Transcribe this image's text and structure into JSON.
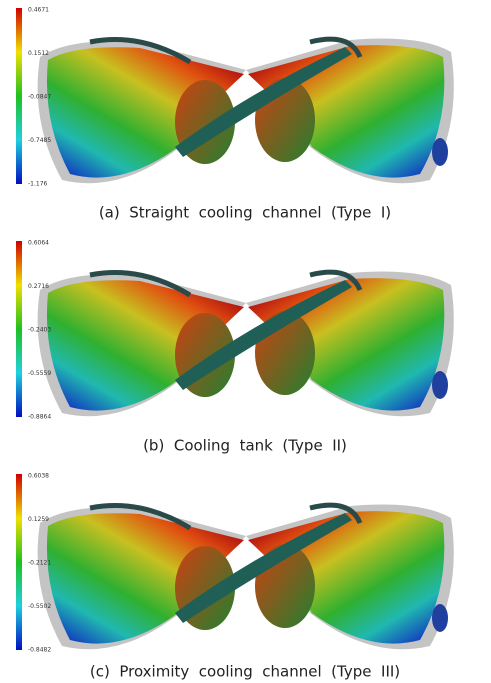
{
  "panels": [
    {
      "caption": "(a)  Straight  cooling  channel  (Type  I)",
      "colorbar_labels": [
        "0.4671",
        "0.1512",
        "-0.0847",
        "-0.7485",
        "-1.176"
      ]
    },
    {
      "caption": "(b)  Cooling  tank  (Type  II)",
      "colorbar_labels": [
        "0.6064",
        "0.2716",
        "-0.2403",
        "-0.5559",
        "-0.8864"
      ]
    },
    {
      "caption": "(c)  Proximity  cooling  channel  (Type  III)",
      "colorbar_labels": [
        "0.6038",
        "0.1259",
        "-0.2121",
        "-0.5502",
        "-0.8482"
      ]
    }
  ]
}
